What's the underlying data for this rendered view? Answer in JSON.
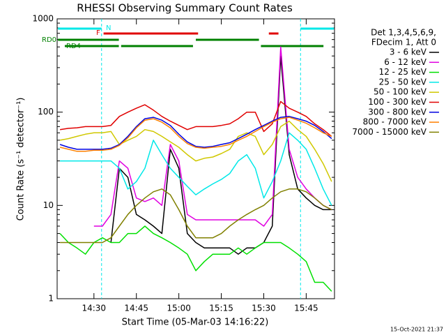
{
  "chart_data": {
    "type": "line",
    "title": "RHESSI Observing Summary Count Rates",
    "x_label": "Start Time (05-Mar-03 14:16:22)",
    "y_label": "Count Rate (s⁻¹ detector⁻¹)",
    "footer": "15-Oct-2021 21:37",
    "legend_header": [
      "Det 1,3,4,5,6,9,",
      "FDecim 1, Att 0"
    ],
    "log_y": true,
    "xlim": [
      17,
      115
    ],
    "xticks": [
      {
        "value": 30,
        "label": "14:30"
      },
      {
        "value": 45,
        "label": "14:45"
      },
      {
        "value": 60,
        "label": "15:00"
      },
      {
        "value": 75,
        "label": "15:15"
      },
      {
        "value": 90,
        "label": "15:30"
      },
      {
        "value": 105,
        "label": "15:45"
      }
    ],
    "ylim": [
      1,
      1000
    ],
    "yticks": [
      1,
      10,
      100,
      1000
    ],
    "x": [
      18,
      21,
      24,
      27,
      30,
      33,
      36,
      39,
      42,
      45,
      48,
      51,
      54,
      57,
      60,
      63,
      66,
      69,
      72,
      75,
      78,
      81,
      84,
      87,
      90,
      93,
      96,
      99,
      102,
      105,
      108,
      111,
      114
    ],
    "series": [
      {
        "name": "3 - 6 keV",
        "color": "#000000",
        "values": [
          null,
          null,
          null,
          null,
          null,
          null,
          4,
          25,
          20,
          8,
          7,
          6,
          5,
          40,
          25,
          5,
          4,
          3.5,
          3.5,
          3.5,
          3.5,
          3,
          3.5,
          3.5,
          4,
          6,
          400,
          35,
          15,
          12,
          10,
          9,
          9
        ]
      },
      {
        "name": "6 - 12 keV",
        "color": "#e000e0",
        "values": [
          null,
          null,
          null,
          null,
          6,
          6,
          8,
          30,
          25,
          12,
          11,
          12,
          10,
          45,
          30,
          8,
          7,
          7,
          7,
          7,
          7,
          7,
          7,
          7,
          6,
          8,
          500,
          40,
          20,
          15,
          12,
          10,
          9
        ]
      },
      {
        "name": "12 - 25 keV",
        "color": "#00e000",
        "values": [
          5,
          4,
          3.5,
          3,
          4,
          4.5,
          4,
          4,
          5,
          5,
          6,
          5,
          4.5,
          4,
          3.5,
          3,
          2,
          2.5,
          3,
          3,
          3,
          3.5,
          3,
          3.5,
          4,
          4,
          4,
          3.5,
          3,
          2.5,
          1.5,
          1.5,
          1.2
        ]
      },
      {
        "name": "25 - 50 keV",
        "color": "#00e8e8",
        "values": [
          30,
          30,
          30,
          30,
          30,
          30,
          30,
          25,
          15,
          18,
          25,
          50,
          35,
          25,
          20,
          16,
          13,
          15,
          17,
          19,
          22,
          30,
          35,
          25,
          12,
          18,
          30,
          60,
          50,
          40,
          25,
          15,
          10
        ]
      },
      {
        "name": "50 - 100 keV",
        "color": "#d0c800",
        "values": [
          50,
          52,
          55,
          58,
          60,
          60,
          62,
          45,
          50,
          55,
          65,
          62,
          55,
          48,
          42,
          35,
          30,
          32,
          33,
          36,
          40,
          55,
          60,
          55,
          35,
          45,
          70,
          80,
          65,
          55,
          40,
          28,
          18
        ]
      },
      {
        "name": "100 - 300 keV",
        "color": "#e00000",
        "values": [
          65,
          67,
          68,
          70,
          70,
          70,
          72,
          90,
          100,
          110,
          120,
          105,
          90,
          80,
          72,
          65,
          70,
          70,
          70,
          72,
          75,
          85,
          100,
          100,
          62,
          75,
          130,
          110,
          100,
          90,
          75,
          65,
          55
        ]
      },
      {
        "name": "300 - 800 keV",
        "color": "#0000e0",
        "values": [
          45,
          42,
          40,
          40,
          40,
          40,
          41,
          45,
          55,
          70,
          85,
          88,
          82,
          72,
          58,
          48,
          43,
          42,
          43,
          45,
          47,
          52,
          58,
          65,
          72,
          80,
          88,
          90,
          85,
          80,
          72,
          62,
          52
        ]
      },
      {
        "name": "800 - 7000 keV",
        "color": "#ff8000",
        "values": [
          42,
          40,
          38,
          38,
          39,
          39,
          40,
          44,
          53,
          68,
          82,
          85,
          78,
          68,
          55,
          46,
          42,
          41,
          42,
          43,
          45,
          50,
          55,
          62,
          70,
          78,
          85,
          88,
          82,
          76,
          68,
          60,
          55
        ]
      },
      {
        "name": "7000 - 15000 keV",
        "color": "#808000",
        "values": [
          4,
          4,
          4,
          4,
          4,
          4,
          4.5,
          6,
          8,
          10,
          12,
          14,
          15,
          13,
          9,
          6,
          4.5,
          4.5,
          4.5,
          5,
          6,
          7,
          8,
          9,
          10,
          12,
          14,
          15,
          15,
          14,
          12,
          10,
          9
        ]
      }
    ],
    "flags": [
      {
        "label": "N",
        "color": "#00e8e8",
        "segments": [
          [
            17.3,
            32.7
          ],
          [
            103,
            114.8
          ]
        ]
      },
      {
        "label": "F",
        "color": "#e00000",
        "segments": [
          [
            33.4,
            66.8
          ],
          [
            91.8,
            95.2
          ]
        ]
      },
      {
        "label": "RD0",
        "color": "#008000",
        "segments": [
          [
            17.3,
            38.8
          ],
          [
            66,
            88.3
          ]
        ]
      },
      {
        "label": "RD4",
        "color": "#008000",
        "segments": [
          [
            19.7,
            38.8
          ],
          [
            39.6,
            65
          ],
          [
            89,
            111.1
          ]
        ]
      }
    ]
  }
}
